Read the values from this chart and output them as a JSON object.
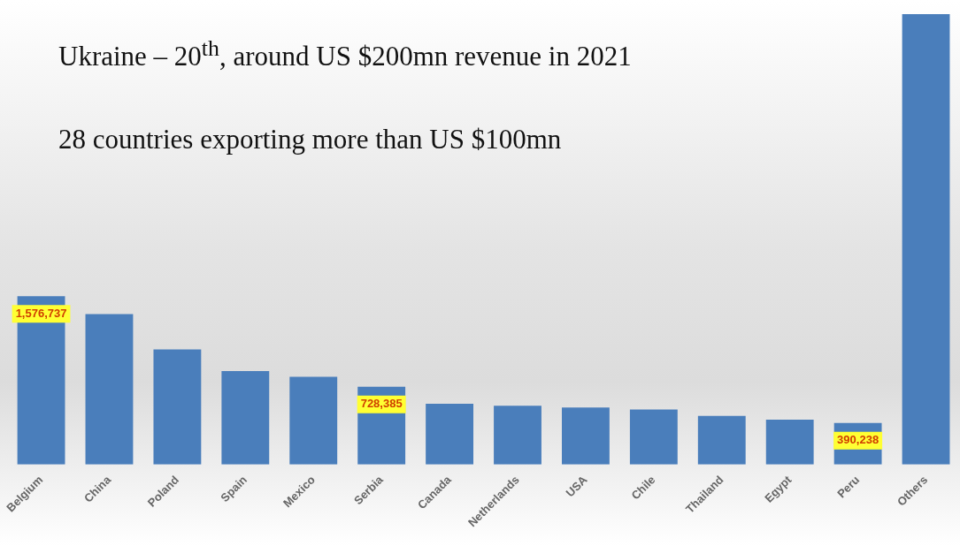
{
  "chart_data": {
    "type": "bar",
    "title": "Ukraine – 20$^{th}$, around US $200mn revenue in 2021",
    "subtitle": "28 countries exporting more than US $100mn",
    "categories": [
      "Belgium",
      "China",
      "Poland",
      "Spain",
      "Mexico",
      "Serbia",
      "Canada",
      "Netherlands",
      "USA",
      "Chile",
      "Thailand",
      "Egypt",
      "Peru",
      "Others"
    ],
    "values": [
      1576737,
      1410000,
      1078000,
      876000,
      823000,
      728385,
      569000,
      552000,
      534000,
      517000,
      456000,
      420000,
      390238,
      4220000
    ],
    "value_labels": [
      "1,576,737",
      null,
      null,
      null,
      null,
      "728,385",
      null,
      null,
      null,
      null,
      null,
      null,
      "390,238",
      null
    ],
    "color": "#4a7ebb"
  }
}
